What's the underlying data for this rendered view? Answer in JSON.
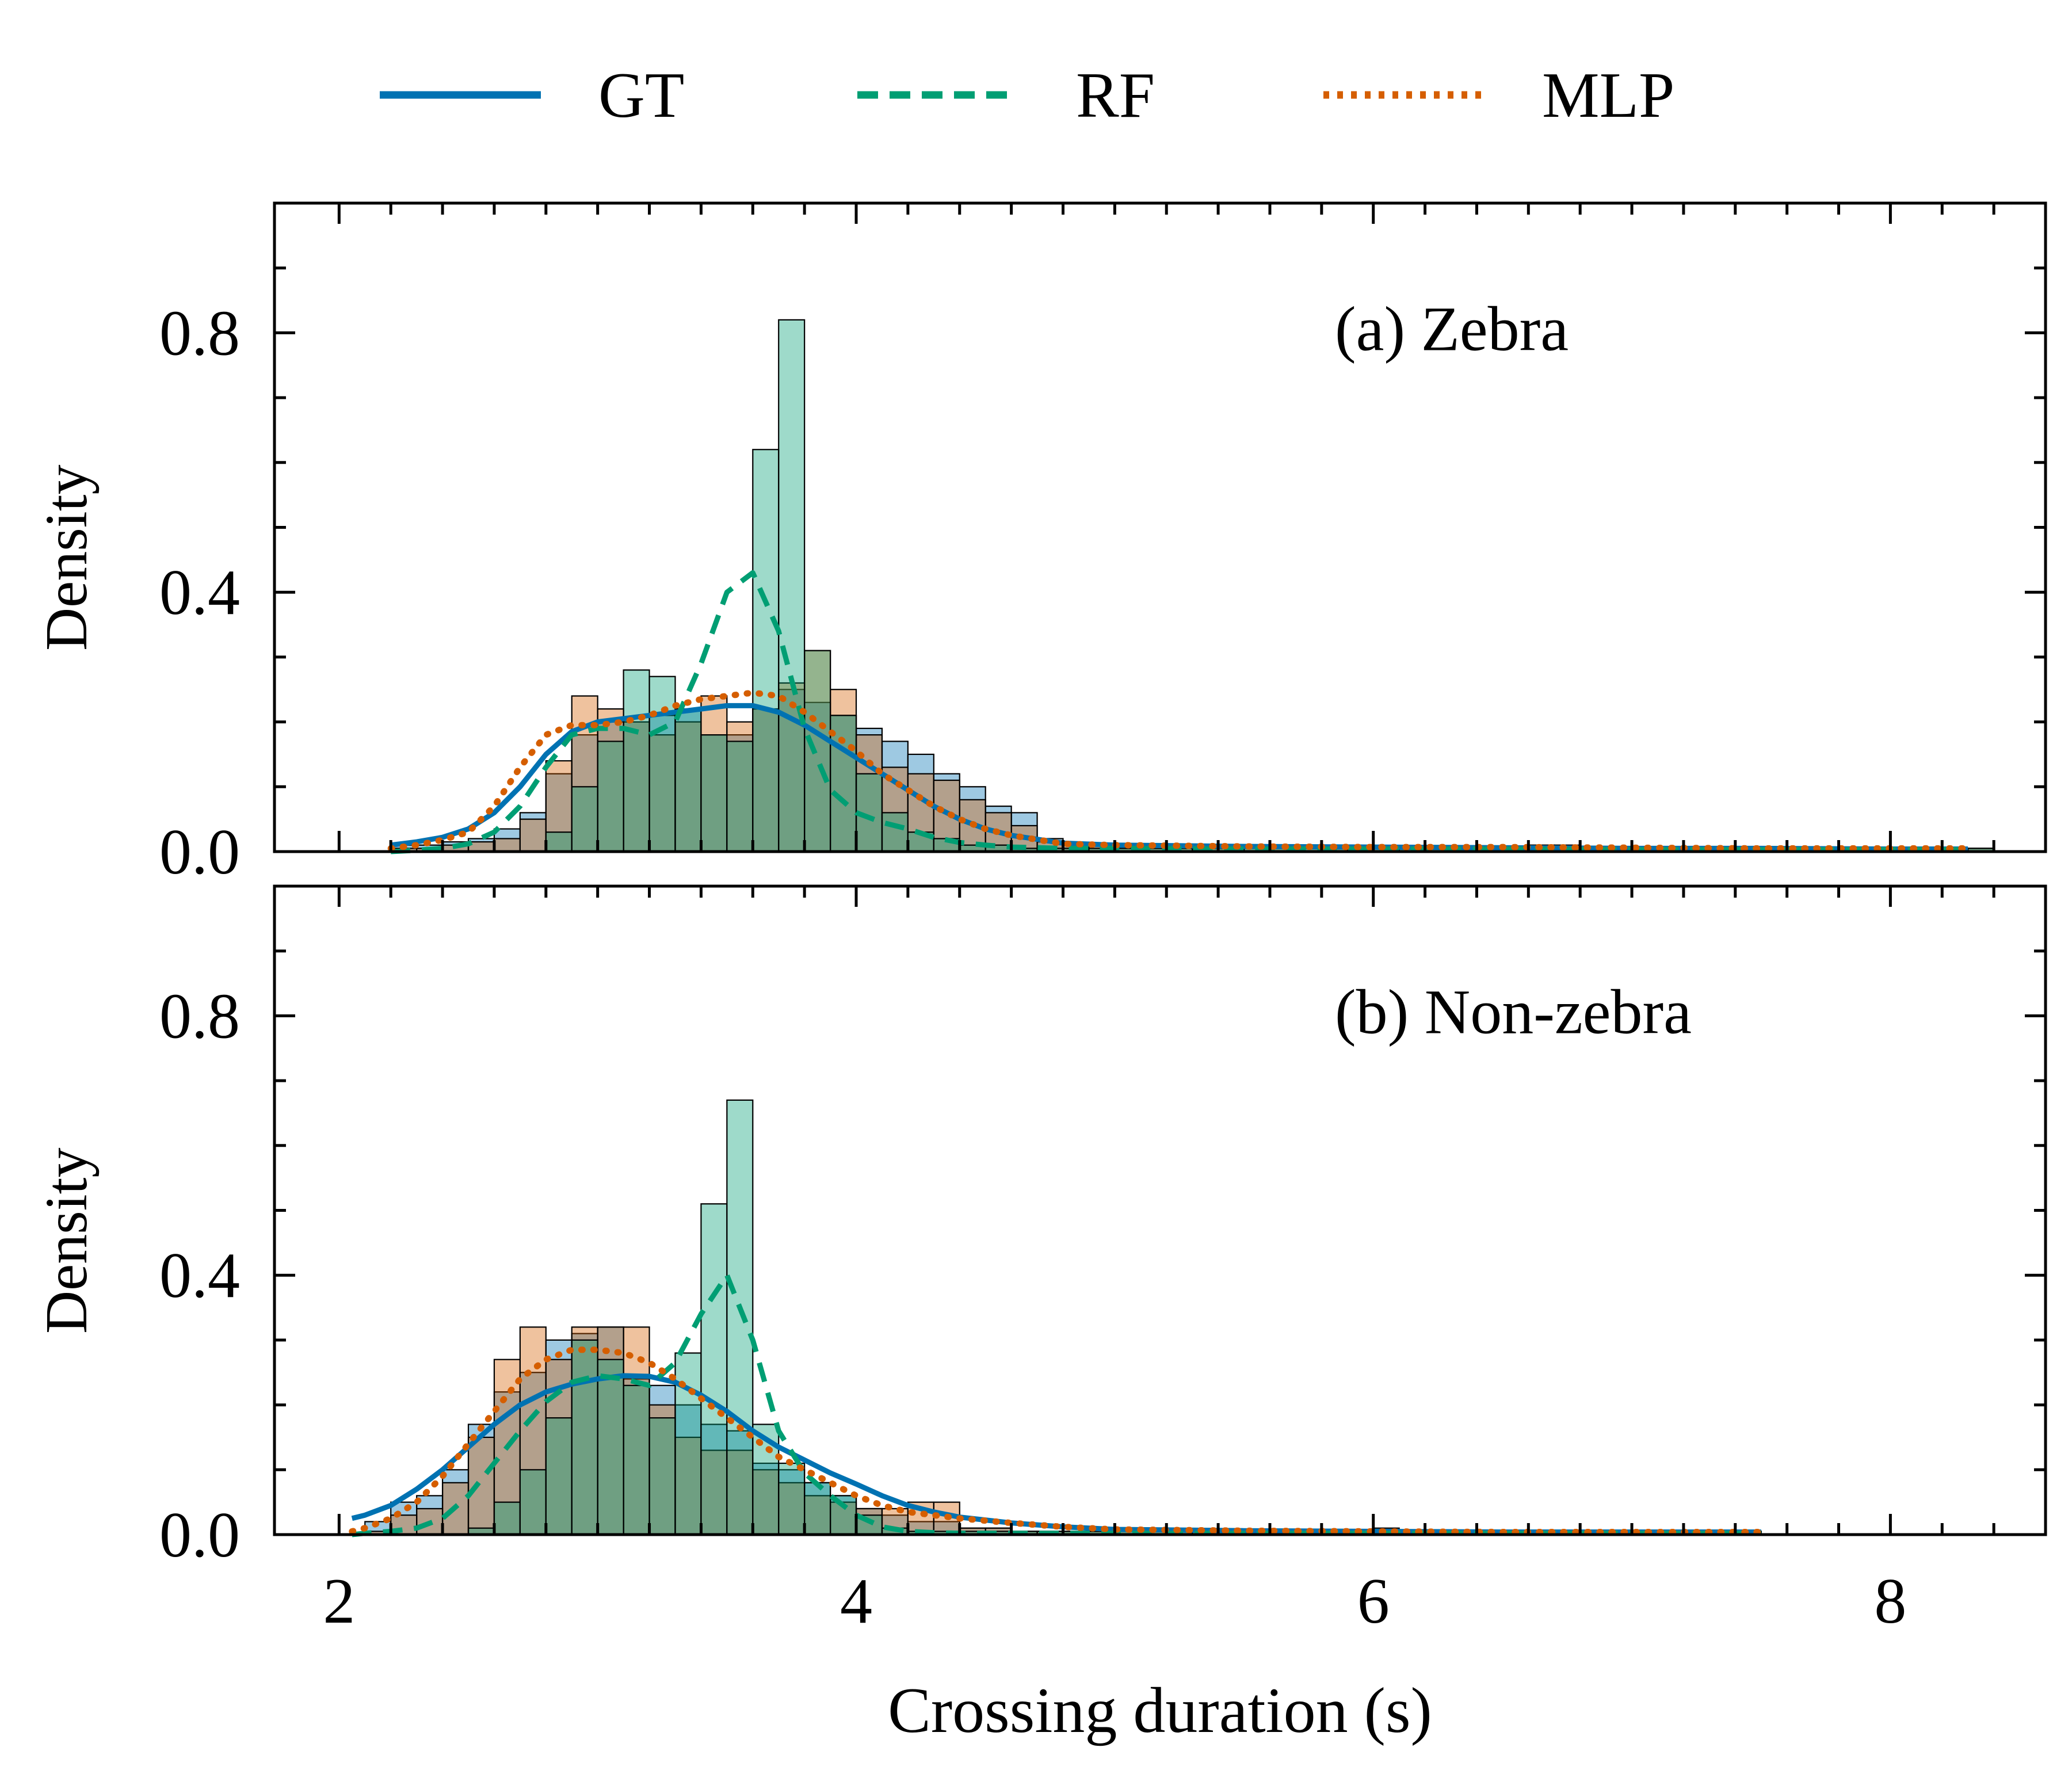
{
  "chart_data": {
    "type": "histogram+kde",
    "xlabel": "Crossing duration (s)",
    "xlim": [
      1.75,
      8.6
    ],
    "xticks": [
      2,
      4,
      6,
      8
    ],
    "xtick_labels": [
      "2",
      "4",
      "6",
      "8"
    ],
    "legend": {
      "placement": "top-center",
      "items": [
        {
          "key": "GT",
          "label": "GT",
          "color": "#0072b2",
          "style": "solid"
        },
        {
          "key": "RF",
          "label": "RF",
          "color": "#009e73",
          "style": "dashed"
        },
        {
          "key": "MLP",
          "label": "MLP",
          "color": "#d55e00",
          "style": "dotted"
        }
      ]
    },
    "panels": [
      {
        "id": "zebra",
        "title": "(a) Zebra",
        "ylabel": "Density",
        "ylim": [
          0,
          1.0
        ],
        "yticks": [
          0.0,
          0.4,
          0.8
        ],
        "ytick_labels": [
          "0.0",
          "0.4",
          "0.8"
        ],
        "bin_width": 0.1,
        "hist": {
          "GT": {
            "start": 2.2,
            "values": [
              0.01,
              0.01,
              0.015,
              0.02,
              0.035,
              0.06,
              0.12,
              0.18,
              0.2,
              0.2,
              0.21,
              0.22,
              0.18,
              0.18,
              0.22,
              0.25,
              0.23,
              0.21,
              0.19,
              0.17,
              0.15,
              0.12,
              0.1,
              0.07,
              0.06,
              0.02,
              0.01,
              0.01,
              0.005,
              0.005,
              0.005,
              0.005,
              0.005,
              0.005,
              0.01,
              0.01,
              0.005,
              0.005,
              0.005,
              0.005,
              0.005,
              0.005,
              0.005,
              0.005,
              0.005,
              0.005,
              0.005,
              0.005,
              0.005,
              0.005,
              0.005,
              0.005,
              0.005,
              0.005,
              0.005,
              0.005,
              0.005,
              0.005,
              0.005,
              0.005,
              0.005,
              0.005
            ]
          },
          "RF": {
            "start": 2.2,
            "values": [
              0.0,
              0.0,
              0.0,
              0.0,
              0.0,
              0.0,
              0.03,
              0.1,
              0.17,
              0.28,
              0.27,
              0.22,
              0.18,
              0.17,
              0.62,
              0.82,
              0.31,
              0.21,
              0.12,
              0.06,
              0.03,
              0.02,
              0.01,
              0.01,
              0.005,
              0.005,
              0.005,
              0.005,
              0.005,
              0.005,
              0.005,
              0.005,
              0.005,
              0.005,
              0.005,
              0.005,
              0.005,
              0.005,
              0.005,
              0.005,
              0.005,
              0.005,
              0.005,
              0.005,
              0.005,
              0.005,
              0.005,
              0.005,
              0.005,
              0.005,
              0.005,
              0.005,
              0.005,
              0.005,
              0.005,
              0.005,
              0.005,
              0.005,
              0.005,
              0.005,
              0.005,
              0.005
            ]
          },
          "MLP": {
            "start": 2.2,
            "values": [
              0.005,
              0.005,
              0.01,
              0.015,
              0.02,
              0.05,
              0.14,
              0.24,
              0.22,
              0.2,
              0.18,
              0.2,
              0.24,
              0.2,
              0.22,
              0.26,
              0.31,
              0.25,
              0.18,
              0.13,
              0.12,
              0.11,
              0.08,
              0.06,
              0.04,
              0.015,
              0.01,
              0.01,
              0.005,
              0.005,
              0.005,
              0.005,
              0.005,
              0.005,
              0.01,
              0.01,
              0.005,
              0.005,
              0.005,
              0.005,
              0.005,
              0.005,
              0.005,
              0.005,
              0.01,
              0.01,
              0.005,
              0.005,
              0.005,
              0.005,
              0.005,
              0.005,
              0.005,
              0.005,
              0.005,
              0.005,
              0.005,
              0.005,
              0.005,
              0.005,
              0.005,
              0.005
            ]
          }
        },
        "kde": {
          "x": [
            2.2,
            2.3,
            2.4,
            2.5,
            2.6,
            2.7,
            2.8,
            2.9,
            3.0,
            3.1,
            3.2,
            3.3,
            3.4,
            3.5,
            3.6,
            3.7,
            3.8,
            3.9,
            4.0,
            4.1,
            4.2,
            4.3,
            4.4,
            4.5,
            4.6,
            4.8,
            5.0,
            5.5,
            6.0,
            6.5,
            7.0,
            7.5,
            8.0,
            8.3
          ],
          "GT": [
            0.01,
            0.015,
            0.022,
            0.035,
            0.06,
            0.1,
            0.15,
            0.185,
            0.2,
            0.205,
            0.21,
            0.215,
            0.22,
            0.225,
            0.225,
            0.215,
            0.195,
            0.17,
            0.145,
            0.12,
            0.095,
            0.07,
            0.05,
            0.035,
            0.025,
            0.013,
            0.01,
            0.008,
            0.007,
            0.006,
            0.005,
            0.005,
            0.004,
            0.004
          ],
          "RF": [
            0.0,
            0.002,
            0.005,
            0.012,
            0.03,
            0.07,
            0.13,
            0.18,
            0.19,
            0.19,
            0.18,
            0.2,
            0.29,
            0.4,
            0.43,
            0.34,
            0.19,
            0.095,
            0.06,
            0.045,
            0.035,
            0.022,
            0.014,
            0.01,
            0.007,
            0.005,
            0.005,
            0.004,
            0.004,
            0.004,
            0.003,
            0.003,
            0.003,
            0.003
          ],
          "MLP": [
            0.005,
            0.01,
            0.018,
            0.03,
            0.07,
            0.13,
            0.18,
            0.195,
            0.195,
            0.2,
            0.21,
            0.225,
            0.235,
            0.24,
            0.245,
            0.24,
            0.215,
            0.185,
            0.155,
            0.12,
            0.095,
            0.07,
            0.05,
            0.035,
            0.025,
            0.012,
            0.01,
            0.008,
            0.007,
            0.007,
            0.006,
            0.005,
            0.005,
            0.005
          ]
        }
      },
      {
        "id": "nonzebra",
        "title": "(b) Non-zebra",
        "ylabel": "Density",
        "ylim": [
          0,
          1.0
        ],
        "yticks": [
          0.0,
          0.4,
          0.8
        ],
        "ytick_labels": [
          "0.0",
          "0.4",
          "0.8"
        ],
        "bin_width": 0.1,
        "hist": {
          "GT": {
            "start": 2.1,
            "values": [
              0.02,
              0.05,
              0.06,
              0.1,
              0.17,
              0.22,
              0.25,
              0.3,
              0.31,
              0.32,
              0.24,
              0.23,
              0.2,
              0.17,
              0.16,
              0.11,
              0.1,
              0.08,
              0.06,
              0.04,
              0.03,
              0.02,
              0.02,
              0.01,
              0.01,
              0.005,
              0.005,
              0.005,
              0.005,
              0.005,
              0.005,
              0.005,
              0.005,
              0.005,
              0.005,
              0.005,
              0.005,
              0.005,
              0.005,
              0.01,
              0.005,
              0.005,
              0.005,
              0.005,
              0.005,
              0.005,
              0.005,
              0.005,
              0.005,
              0.005,
              0.005,
              0.005,
              0.005,
              0.005
            ]
          },
          "RF": {
            "start": 2.1,
            "values": [
              0.0,
              0.0,
              0.0,
              0.0,
              0.01,
              0.05,
              0.1,
              0.18,
              0.3,
              0.27,
              0.23,
              0.18,
              0.28,
              0.51,
              0.67,
              0.17,
              0.11,
              0.08,
              0.06,
              0.03,
              0.01,
              0.005,
              0.005,
              0.005,
              0.005,
              0.005,
              0.005,
              0.005,
              0.005,
              0.005,
              0.005,
              0.005,
              0.005,
              0.005,
              0.005,
              0.005,
              0.005,
              0.005,
              0.005,
              0.005,
              0.005,
              0.005,
              0.005,
              0.005,
              0.005,
              0.005,
              0.005,
              0.005,
              0.005,
              0.005,
              0.005,
              0.005,
              0.005,
              0.005
            ]
          },
          "MLP": {
            "start": 2.1,
            "values": [
              0.005,
              0.03,
              0.04,
              0.08,
              0.15,
              0.27,
              0.32,
              0.27,
              0.32,
              0.32,
              0.32,
              0.2,
              0.15,
              0.13,
              0.13,
              0.1,
              0.08,
              0.06,
              0.05,
              0.04,
              0.04,
              0.05,
              0.05,
              0.01,
              0.01,
              0.005,
              0.005,
              0.005,
              0.005,
              0.005,
              0.005,
              0.005,
              0.005,
              0.005,
              0.005,
              0.005,
              0.005,
              0.005,
              0.005,
              0.005,
              0.005,
              0.005,
              0.005,
              0.005,
              0.005,
              0.005,
              0.005,
              0.005,
              0.005,
              0.005,
              0.005,
              0.005,
              0.005,
              0.005
            ]
          }
        },
        "kde": {
          "x": [
            2.05,
            2.1,
            2.2,
            2.3,
            2.4,
            2.5,
            2.6,
            2.7,
            2.8,
            2.9,
            3.0,
            3.1,
            3.2,
            3.3,
            3.4,
            3.5,
            3.6,
            3.7,
            3.8,
            3.9,
            4.0,
            4.1,
            4.2,
            4.3,
            4.4,
            4.6,
            4.8,
            5.0,
            5.5,
            6.0,
            6.5,
            7.0,
            7.5
          ],
          "GT": [
            0.025,
            0.03,
            0.045,
            0.07,
            0.1,
            0.135,
            0.17,
            0.2,
            0.22,
            0.232,
            0.24,
            0.245,
            0.244,
            0.235,
            0.215,
            0.19,
            0.16,
            0.135,
            0.115,
            0.095,
            0.078,
            0.06,
            0.045,
            0.035,
            0.027,
            0.018,
            0.012,
            0.008,
            0.006,
            0.005,
            0.004,
            0.004,
            0.004
          ],
          "RF": [
            0.0,
            0.002,
            0.005,
            0.01,
            0.025,
            0.06,
            0.11,
            0.16,
            0.205,
            0.235,
            0.245,
            0.24,
            0.23,
            0.265,
            0.34,
            0.4,
            0.3,
            0.16,
            0.095,
            0.06,
            0.03,
            0.012,
            0.005,
            0.003,
            0.002,
            0.002,
            0.002,
            0.002,
            0.002,
            0.002,
            0.002,
            0.002,
            0.002
          ],
          "MLP": [
            0.005,
            0.01,
            0.025,
            0.05,
            0.09,
            0.14,
            0.19,
            0.24,
            0.27,
            0.285,
            0.285,
            0.28,
            0.265,
            0.24,
            0.21,
            0.18,
            0.15,
            0.12,
            0.1,
            0.08,
            0.06,
            0.045,
            0.035,
            0.03,
            0.025,
            0.018,
            0.012,
            0.008,
            0.006,
            0.005,
            0.004,
            0.004,
            0.004
          ]
        }
      }
    ]
  }
}
